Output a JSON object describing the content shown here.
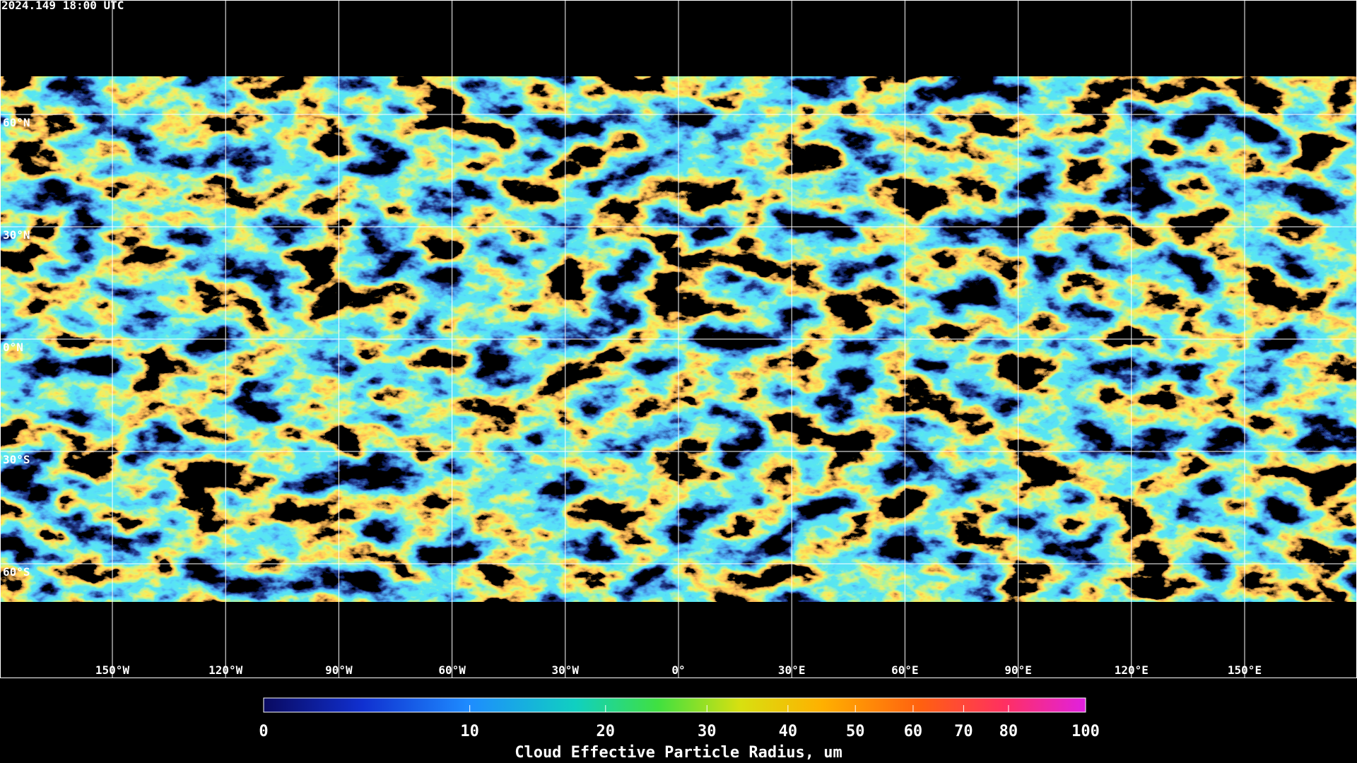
{
  "header": {
    "timestamp": "2024.149 18:00 UTC"
  },
  "map": {
    "lat_labels": [
      "60°N",
      "30°N",
      "0°N",
      "30°S",
      "60°S"
    ],
    "lon_labels": [
      "150°W",
      "120°W",
      "90°W",
      "60°W",
      "30°W",
      "0°",
      "30°E",
      "60°E",
      "90°E",
      "120°E",
      "150°E"
    ]
  },
  "colorbar": {
    "title": "Cloud Effective Particle Radius, um",
    "range": [
      0,
      100
    ],
    "ticks": [
      0,
      10,
      20,
      30,
      40,
      50,
      60,
      70,
      80,
      100
    ]
  }
}
